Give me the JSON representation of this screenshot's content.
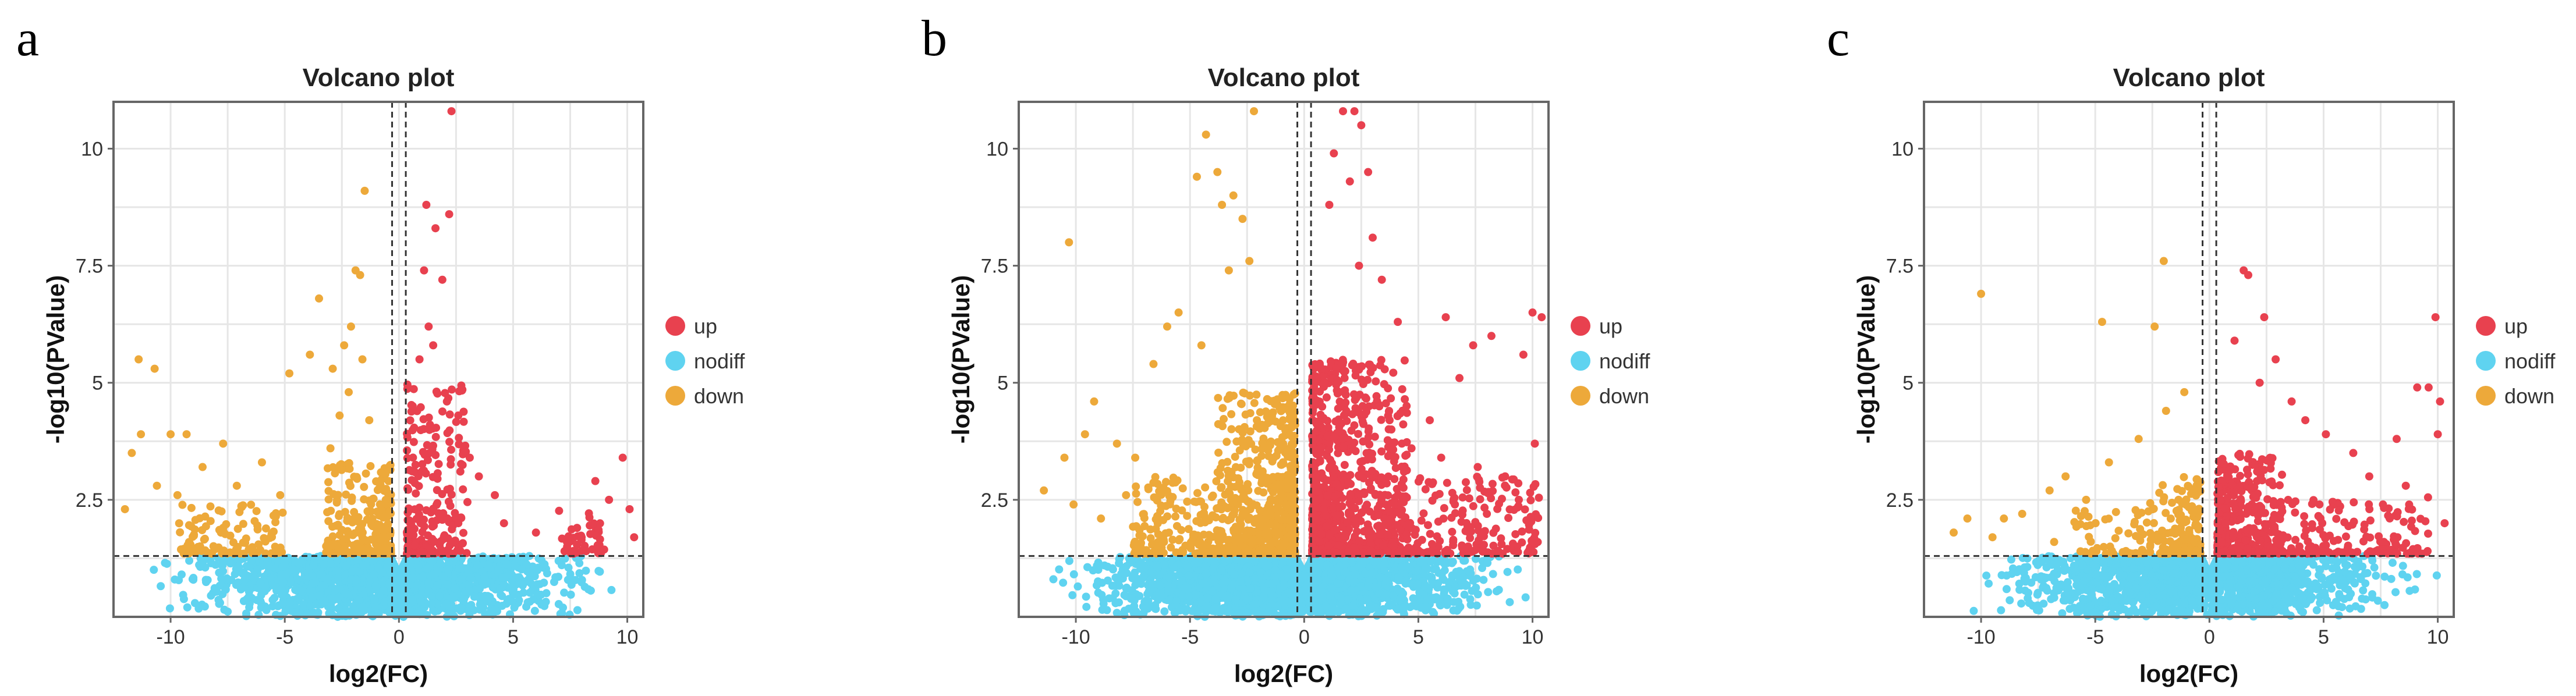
{
  "chart_data": [
    {
      "panel_letter": "a",
      "type": "scatter",
      "title": "Volcano plot",
      "xlabel": "log2(FC)",
      "ylabel": "-log10(PValue)",
      "xlim": [
        -12.5,
        10.7
      ],
      "ylim": [
        0,
        11
      ],
      "xticks": [
        -10,
        -5,
        0,
        5,
        10
      ],
      "yticks": [
        2.5,
        5,
        7.5,
        10
      ],
      "xtick_labels": [
        "-10",
        "-5",
        "0",
        "5",
        "10"
      ],
      "ytick_labels": [
        "2.5",
        "5",
        "7.5",
        "10"
      ],
      "thresholds": {
        "log2fc": [
          -0.3,
          0.3
        ],
        "neg_log10_p": 1.3
      },
      "grid": true,
      "legend_position": "right",
      "legend": [
        {
          "name": "up",
          "color": "#e8414f"
        },
        {
          "name": "nodiff",
          "color": "#5fd3f0"
        },
        {
          "name": "down",
          "color": "#eda93a"
        }
      ],
      "series": [
        {
          "name": "up",
          "points": [
            [
              2.3,
              10.8
            ],
            [
              1.2,
              8.8
            ],
            [
              2.2,
              8.6
            ],
            [
              1.6,
              8.3
            ],
            [
              1.1,
              7.4
            ],
            [
              1.9,
              7.2
            ],
            [
              1.3,
              6.2
            ],
            [
              1.5,
              5.8
            ],
            [
              0.9,
              5.5
            ],
            [
              2.1,
              4.6
            ],
            [
              2.6,
              4.3
            ],
            [
              3.1,
              3.4
            ],
            [
              3.5,
              3.0
            ],
            [
              4.2,
              2.6
            ],
            [
              4.6,
              2.0
            ],
            [
              6.0,
              1.8
            ],
            [
              9.8,
              3.4
            ],
            [
              10.1,
              2.3
            ],
            [
              8.6,
              2.9
            ],
            [
              9.2,
              2.5
            ],
            [
              7.8,
              1.9
            ],
            [
              7.4,
              1.6
            ],
            [
              8.0,
              1.7
            ],
            [
              10.3,
              1.7
            ],
            [
              2.6,
              2.0
            ]
          ],
          "cluster": {
            "x": [
              0.35,
              3.0
            ],
            "y": [
              1.35,
              5.0
            ],
            "count": 230
          },
          "cluster2": {
            "x": [
              7.0,
              9.0
            ],
            "y": [
              1.35,
              2.3
            ],
            "count": 45
          }
        },
        {
          "name": "down",
          "points": [
            [
              -1.5,
              9.1
            ],
            [
              -1.9,
              7.4
            ],
            [
              -1.7,
              7.3
            ],
            [
              -3.5,
              6.8
            ],
            [
              -2.1,
              6.2
            ],
            [
              -2.4,
              5.8
            ],
            [
              -3.9,
              5.6
            ],
            [
              -1.6,
              5.5
            ],
            [
              -11.4,
              5.5
            ],
            [
              -10.7,
              5.3
            ],
            [
              -2.9,
              5.3
            ],
            [
              -4.8,
              5.2
            ],
            [
              -2.6,
              4.3
            ],
            [
              -11.3,
              3.9
            ],
            [
              -10.0,
              3.9
            ],
            [
              -9.3,
              3.9
            ],
            [
              -7.7,
              3.7
            ],
            [
              -11.7,
              3.5
            ],
            [
              -12.0,
              2.3
            ],
            [
              -10.6,
              2.8
            ],
            [
              -9.7,
              2.6
            ],
            [
              -8.6,
              3.2
            ],
            [
              -7.1,
              2.8
            ],
            [
              -6.0,
              3.3
            ],
            [
              -5.2,
              2.6
            ],
            [
              -3.0,
              3.6
            ],
            [
              -2.2,
              4.8
            ],
            [
              -1.3,
              4.2
            ]
          ],
          "cluster": {
            "x": [
              -3.2,
              -0.35
            ],
            "y": [
              1.35,
              3.3
            ],
            "count": 260
          },
          "cluster2": {
            "x": [
              -9.8,
              -5.0
            ],
            "y": [
              1.35,
              2.4
            ],
            "count": 110
          }
        },
        {
          "name": "nodiff",
          "cluster": {
            "x": [
              -11.5,
              10.3
            ],
            "y": [
              0,
              1.3
            ],
            "count": 1800
          }
        }
      ]
    },
    {
      "panel_letter": "b",
      "type": "scatter",
      "title": "Volcano plot",
      "xlabel": "log2(FC)",
      "ylabel": "-log10(PValue)",
      "xlim": [
        -12.5,
        10.7
      ],
      "ylim": [
        0,
        11
      ],
      "xticks": [
        -10,
        -5,
        0,
        5,
        10
      ],
      "yticks": [
        2.5,
        5,
        7.5,
        10
      ],
      "xtick_labels": [
        "-10",
        "-5",
        "0",
        "5",
        "10"
      ],
      "ytick_labels": [
        "2.5",
        "5",
        "7.5",
        "10"
      ],
      "thresholds": {
        "log2fc": [
          -0.3,
          0.3
        ],
        "neg_log10_p": 1.3
      },
      "grid": true,
      "legend_position": "right",
      "legend": [
        {
          "name": "up",
          "color": "#e8414f"
        },
        {
          "name": "nodiff",
          "color": "#5fd3f0"
        },
        {
          "name": "down",
          "color": "#eda93a"
        }
      ],
      "series": [
        {
          "name": "up",
          "points": [
            [
              1.7,
              10.8
            ],
            [
              2.2,
              10.8
            ],
            [
              2.5,
              10.5
            ],
            [
              1.3,
              9.9
            ],
            [
              2.0,
              9.3
            ],
            [
              2.8,
              9.5
            ],
            [
              1.1,
              8.8
            ],
            [
              3.0,
              8.1
            ],
            [
              2.4,
              7.5
            ],
            [
              3.4,
              7.2
            ],
            [
              4.1,
              6.3
            ],
            [
              6.2,
              6.4
            ],
            [
              7.4,
              5.8
            ],
            [
              8.2,
              6.0
            ],
            [
              10.0,
              6.5
            ],
            [
              10.4,
              6.4
            ],
            [
              9.6,
              5.6
            ],
            [
              6.8,
              5.1
            ],
            [
              5.5,
              4.2
            ],
            [
              4.7,
              3.6
            ],
            [
              6.0,
              3.4
            ],
            [
              7.6,
              3.2
            ],
            [
              8.8,
              3.0
            ],
            [
              10.1,
              3.7
            ],
            [
              9.4,
              2.5
            ],
            [
              8.0,
              2.2
            ],
            [
              6.6,
              2.4
            ]
          ],
          "cluster": {
            "x": [
              0.35,
              4.5
            ],
            "y": [
              1.35,
              5.5
            ],
            "count": 900
          },
          "cluster2": {
            "x": [
              4.5,
              10.3
            ],
            "y": [
              1.35,
              3.0
            ],
            "count": 180
          }
        },
        {
          "name": "down",
          "points": [
            [
              -2.2,
              10.8
            ],
            [
              -4.3,
              10.3
            ],
            [
              -3.8,
              9.5
            ],
            [
              -4.7,
              9.4
            ],
            [
              -3.1,
              9.0
            ],
            [
              -3.6,
              8.8
            ],
            [
              -2.7,
              8.5
            ],
            [
              -10.3,
              8.0
            ],
            [
              -3.3,
              7.4
            ],
            [
              -2.4,
              7.6
            ],
            [
              -5.5,
              6.5
            ],
            [
              -6.0,
              6.2
            ],
            [
              -4.5,
              5.8
            ],
            [
              -6.6,
              5.4
            ],
            [
              -9.2,
              4.6
            ],
            [
              -9.6,
              3.9
            ],
            [
              -10.5,
              3.4
            ],
            [
              -8.2,
              3.7
            ],
            [
              -7.4,
              3.4
            ],
            [
              -11.4,
              2.7
            ],
            [
              -10.1,
              2.4
            ],
            [
              -8.9,
              2.1
            ],
            [
              -7.8,
              2.6
            ]
          ],
          "cluster": {
            "x": [
              -3.8,
              -0.4
            ],
            "y": [
              1.35,
              4.8
            ],
            "count": 650
          },
          "cluster2": {
            "x": [
              -7.5,
              -3.8
            ],
            "y": [
              1.35,
              3.0
            ],
            "count": 160
          }
        },
        {
          "name": "nodiff",
          "cluster": {
            "x": [
              -11.5,
              10.3
            ],
            "y": [
              0,
              1.3
            ],
            "count": 2400
          }
        }
      ]
    },
    {
      "panel_letter": "c",
      "type": "scatter",
      "title": "Volcano plot",
      "xlabel": "log2(FC)",
      "ylabel": "-log10(PValue)",
      "xlim": [
        -12.5,
        10.7
      ],
      "ylim": [
        0,
        11
      ],
      "xticks": [
        -10,
        -5,
        0,
        5,
        10
      ],
      "yticks": [
        2.5,
        5,
        7.5,
        10
      ],
      "xtick_labels": [
        "-10",
        "-5",
        "0",
        "5",
        "10"
      ],
      "ytick_labels": [
        "2.5",
        "5",
        "7.5",
        "10"
      ],
      "thresholds": {
        "log2fc": [
          -0.3,
          0.3
        ],
        "neg_log10_p": 1.3
      },
      "grid": true,
      "legend_position": "right",
      "legend": [
        {
          "name": "up",
          "color": "#e8414f"
        },
        {
          "name": "nodiff",
          "color": "#5fd3f0"
        },
        {
          "name": "down",
          "color": "#eda93a"
        }
      ],
      "series": [
        {
          "name": "up",
          "points": [
            [
              1.5,
              7.4
            ],
            [
              1.7,
              7.3
            ],
            [
              2.4,
              6.4
            ],
            [
              1.1,
              5.9
            ],
            [
              2.9,
              5.5
            ],
            [
              2.2,
              5.0
            ],
            [
              3.6,
              4.6
            ],
            [
              4.2,
              4.2
            ],
            [
              5.1,
              3.9
            ],
            [
              6.3,
              3.5
            ],
            [
              7.0,
              3.0
            ],
            [
              8.2,
              3.8
            ],
            [
              9.1,
              4.9
            ],
            [
              9.6,
              4.9
            ],
            [
              10.1,
              4.6
            ],
            [
              9.9,
              6.4
            ],
            [
              10.0,
              3.9
            ],
            [
              8.6,
              2.8
            ],
            [
              7.6,
              2.4
            ],
            [
              10.3,
              2.0
            ]
          ],
          "cluster": {
            "x": [
              0.35,
              3.2
            ],
            "y": [
              1.35,
              3.5
            ],
            "count": 380
          },
          "cluster2": {
            "x": [
              3.2,
              9.6
            ],
            "y": [
              1.35,
              2.6
            ],
            "count": 150
          }
        },
        {
          "name": "down",
          "points": [
            [
              -2.0,
              7.6
            ],
            [
              -10.0,
              6.9
            ],
            [
              -4.7,
              6.3
            ],
            [
              -2.4,
              6.2
            ],
            [
              -1.1,
              4.8
            ],
            [
              -1.9,
              4.4
            ],
            [
              -3.1,
              3.8
            ],
            [
              -4.4,
              3.3
            ],
            [
              -6.3,
              3.0
            ],
            [
              -7.0,
              2.7
            ],
            [
              -5.4,
              2.5
            ],
            [
              -9.0,
              2.1
            ],
            [
              -10.6,
              2.1
            ],
            [
              -8.2,
              2.2
            ],
            [
              -11.2,
              1.8
            ],
            [
              -9.5,
              1.7
            ],
            [
              -6.8,
              1.6
            ]
          ],
          "cluster": {
            "x": [
              -2.6,
              -0.4
            ],
            "y": [
              1.35,
              3.0
            ],
            "count": 160
          },
          "cluster2": {
            "x": [
              -6.0,
              -2.6
            ],
            "y": [
              1.35,
              2.3
            ],
            "count": 55
          }
        },
        {
          "name": "nodiff",
          "cluster": {
            "x": [
              -11.5,
              10.3
            ],
            "y": [
              0,
              1.3
            ],
            "count": 1600
          }
        }
      ]
    }
  ]
}
